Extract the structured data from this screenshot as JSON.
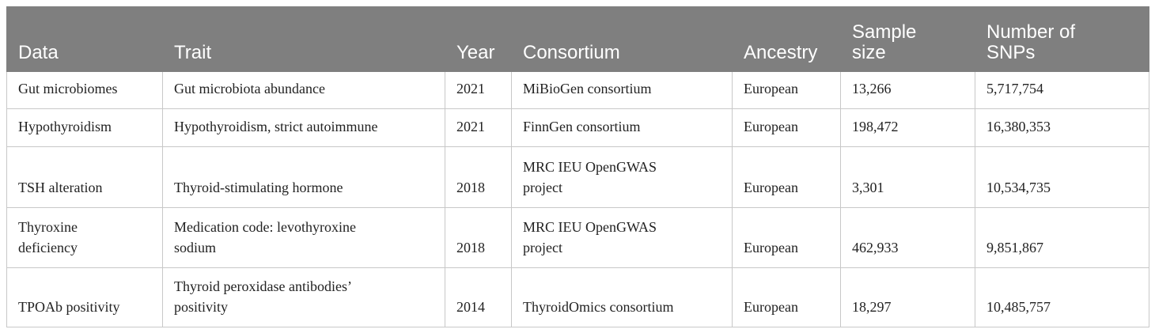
{
  "table": {
    "header": [
      "Data",
      "Trait",
      "Year",
      "Consortium",
      "Ancestry",
      [
        "Sample",
        "size"
      ],
      [
        "Number of",
        "SNPs"
      ]
    ],
    "rows": [
      [
        "Gut microbiomes",
        "Gut microbiota abundance",
        "2021",
        "MiBioGen consortium",
        "European",
        "13,266",
        "5,717,754"
      ],
      [
        "Hypothyroidism",
        "Hypothyroidism, strict autoimmune",
        "2021",
        "FinnGen consortium",
        "European",
        "198,472",
        "16,380,353"
      ],
      [
        "TSH alteration",
        "Thyroid-stimulating hormone",
        "2018",
        [
          "MRC IEU OpenGWAS",
          "project"
        ],
        "European",
        "3,301",
        "10,534,735"
      ],
      [
        [
          "Thyroxine",
          "deficiency"
        ],
        [
          "Medication code: levothyroxine",
          "sodium"
        ],
        "2018",
        [
          "MRC IEU OpenGWAS",
          "project"
        ],
        "European",
        "462,933",
        "9,851,867"
      ],
      [
        "TPOAb positivity",
        [
          "Thyroid peroxidase antibodies’",
          "positivity"
        ],
        "2014",
        "ThyroidOmics consortium",
        "European",
        "18,297",
        "10,485,757"
      ]
    ]
  }
}
